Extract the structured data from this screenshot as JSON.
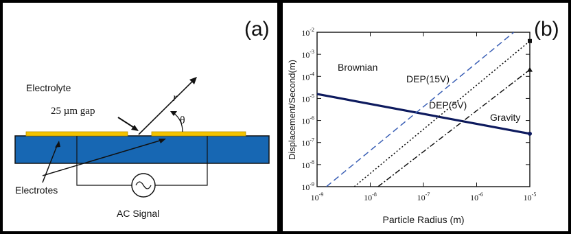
{
  "panel_a": {
    "label": "(a)",
    "electrolyte_label": "Electrolyte",
    "gap_label": "25 µm gap",
    "r_label": "r",
    "theta_label": "θ",
    "electrodes_label": "Electrotes",
    "ac_label": "AC Signal",
    "colors": {
      "substrate": "#1767b3",
      "electrode": "#f3c300"
    }
  },
  "panel_b": {
    "label": "(b)"
  },
  "chart_data": {
    "type": "line",
    "title": "",
    "xlabel": "Particle Radius (m)",
    "ylabel": "Displacement/Second(m)",
    "x_scale": "log",
    "y_scale": "log",
    "xlim": [
      1e-09,
      1e-05
    ],
    "ylim": [
      1e-09,
      0.01
    ],
    "x_ticks": [
      {
        "base": "10",
        "exp": "-9"
      },
      {
        "base": "10",
        "exp": "-8"
      },
      {
        "base": "10",
        "exp": "-7"
      },
      {
        "base": "10",
        "exp": "-6"
      },
      {
        "base": "10",
        "exp": "-5"
      }
    ],
    "y_ticks": [
      {
        "base": "10",
        "exp": "-9"
      },
      {
        "base": "10",
        "exp": "-8"
      },
      {
        "base": "10",
        "exp": "-7"
      },
      {
        "base": "10",
        "exp": "-6"
      },
      {
        "base": "10",
        "exp": "-5"
      },
      {
        "base": "10",
        "exp": "-4"
      },
      {
        "base": "10",
        "exp": "-3"
      },
      {
        "base": "10",
        "exp": "-2"
      }
    ],
    "series": [
      {
        "name": "Brownian",
        "color": "#0d1a5e",
        "dash": "solid",
        "x": [
          6e-10,
          1e-05
        ],
        "y": [
          2e-05,
          2.5e-07
        ]
      },
      {
        "name": "DEP(15V)",
        "color": "#3a5fb5",
        "dash": "dashed",
        "x": [
          1.5e-09,
          5e-06
        ],
        "y": [
          1e-09,
          0.01
        ]
      },
      {
        "name": "DEP(5V)",
        "color": "#111111",
        "dash": "dotted",
        "x": [
          5e-09,
          1e-05
        ],
        "y": [
          1e-09,
          0.004
        ]
      },
      {
        "name": "Gravity",
        "color": "#111111",
        "dash": "dashdot",
        "x": [
          1.4e-08,
          1e-05
        ],
        "y": [
          1e-09,
          0.0002
        ]
      }
    ]
  }
}
